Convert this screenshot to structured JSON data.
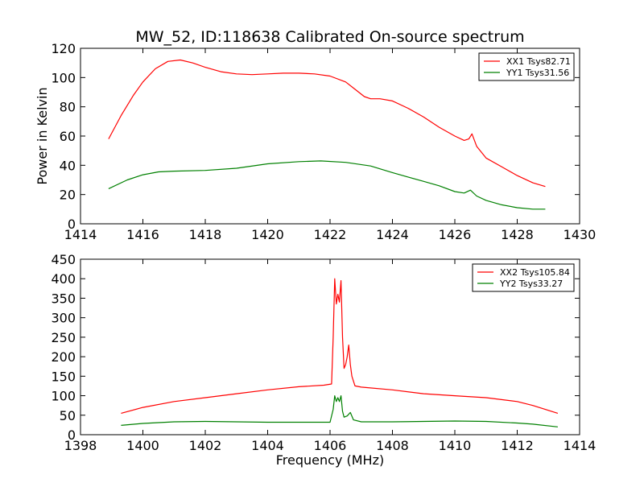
{
  "chart_data": [
    {
      "type": "line",
      "title": "MW_52, ID:118638 Calibrated On-source spectrum",
      "xlabel": "",
      "ylabel": "Power in Kelvin",
      "xlim": [
        1414,
        1430
      ],
      "ylim": [
        0,
        120
      ],
      "xticks": [
        "1414",
        "1416",
        "1418",
        "1420",
        "1422",
        "1424",
        "1426",
        "1428",
        "1430"
      ],
      "yticks": [
        "0",
        "20",
        "40",
        "60",
        "80",
        "100",
        "120"
      ],
      "legend_position": "top-right",
      "grid": false,
      "series": [
        {
          "name": "XX1 Tsys82.71",
          "color": "#ff0000",
          "x": [
            1414.9,
            1415.3,
            1415.7,
            1416.0,
            1416.4,
            1416.8,
            1417.2,
            1417.6,
            1418.0,
            1418.5,
            1419.0,
            1419.5,
            1420.0,
            1420.5,
            1421.0,
            1421.5,
            1422.0,
            1422.5,
            1422.8,
            1423.1,
            1423.3,
            1423.6,
            1424.0,
            1424.5,
            1425.0,
            1425.5,
            1426.0,
            1426.3,
            1426.45,
            1426.55,
            1426.7,
            1427.0,
            1427.5,
            1428.0,
            1428.5,
            1428.9
          ],
          "y": [
            58,
            74,
            88,
            97,
            106,
            111,
            112,
            110,
            107,
            104,
            102.5,
            102,
            102.5,
            103,
            103,
            102.5,
            101,
            97,
            92,
            87,
            85.5,
            85.5,
            84,
            79,
            73,
            66,
            60,
            57,
            58,
            61.5,
            53,
            45,
            39,
            33,
            28,
            25.5
          ]
        },
        {
          "name": "YY1 Tsys31.56",
          "color": "#008000",
          "x": [
            1414.9,
            1415.5,
            1416.0,
            1416.5,
            1417.0,
            1418.0,
            1419.0,
            1420.0,
            1421.0,
            1421.7,
            1422.5,
            1423.3,
            1424.0,
            1424.5,
            1425.0,
            1425.5,
            1426.0,
            1426.3,
            1426.5,
            1426.7,
            1427.0,
            1427.5,
            1428.0,
            1428.5,
            1428.9
          ],
          "y": [
            24,
            30,
            33.5,
            35.5,
            36,
            36.5,
            38,
            41,
            42.5,
            43,
            42,
            39.5,
            35,
            32,
            29,
            26,
            22,
            21,
            23,
            19,
            16,
            13,
            11,
            10,
            10
          ]
        }
      ]
    },
    {
      "type": "line",
      "title": "",
      "xlabel": "Frequency (MHz)",
      "ylabel": "",
      "xlim": [
        1398,
        1414
      ],
      "ylim": [
        0,
        450
      ],
      "xticks": [
        "1398",
        "1400",
        "1402",
        "1404",
        "1406",
        "1408",
        "1410",
        "1412",
        "1414"
      ],
      "yticks": [
        "0",
        "50",
        "100",
        "150",
        "200",
        "250",
        "300",
        "350",
        "400",
        "450"
      ],
      "legend_position": "top-right",
      "grid": false,
      "series": [
        {
          "name": "XX2 Tsys105.84",
          "color": "#ff0000",
          "x": [
            1399.3,
            1400.0,
            1401.0,
            1402.0,
            1403.0,
            1404.0,
            1405.0,
            1405.8,
            1406.05,
            1406.1,
            1406.15,
            1406.2,
            1406.25,
            1406.3,
            1406.35,
            1406.4,
            1406.45,
            1406.5,
            1406.55,
            1406.6,
            1406.65,
            1406.7,
            1406.8,
            1407.0,
            1408.0,
            1409.0,
            1410.0,
            1411.0,
            1412.0,
            1412.5,
            1413.3
          ],
          "y": [
            55,
            70,
            85,
            95,
            105,
            115,
            123,
            127,
            130,
            250,
            400,
            335,
            360,
            340,
            395,
            250,
            170,
            180,
            200,
            230,
            180,
            150,
            125,
            122,
            115,
            105,
            100,
            95,
            85,
            75,
            55
          ]
        },
        {
          "name": "YY2 Tsys33.27",
          "color": "#008000",
          "x": [
            1399.3,
            1400.0,
            1401.0,
            1402.0,
            1403.0,
            1404.0,
            1405.0,
            1406.0,
            1406.1,
            1406.15,
            1406.2,
            1406.25,
            1406.3,
            1406.35,
            1406.4,
            1406.45,
            1406.55,
            1406.65,
            1406.75,
            1407.0,
            1408.0,
            1409.0,
            1410.0,
            1411.0,
            1412.0,
            1412.5,
            1413.3
          ],
          "y": [
            24,
            29,
            33,
            34,
            33,
            32,
            32,
            32,
            65,
            100,
            85,
            95,
            85,
            100,
            60,
            45,
            48,
            57,
            38,
            33,
            33,
            34,
            35,
            34,
            30,
            27,
            20
          ]
        }
      ]
    }
  ]
}
